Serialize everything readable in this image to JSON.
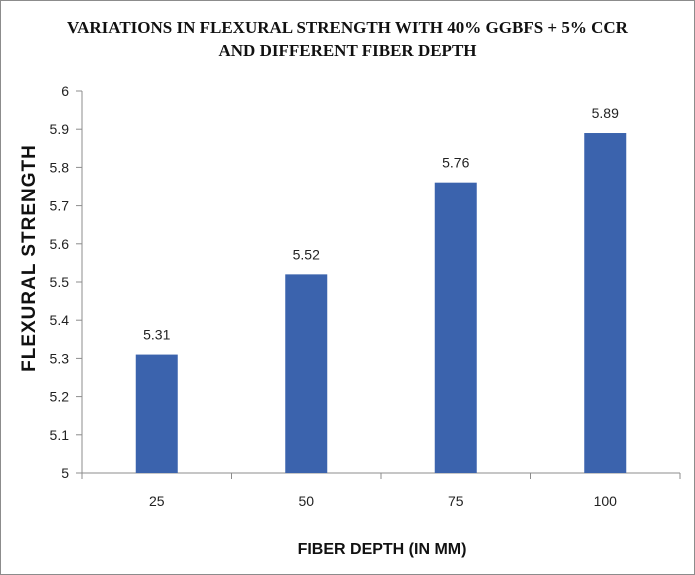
{
  "chart_data": {
    "type": "bar",
    "title_lines": [
      "VARIATIONS  IN  FLEXURAL STRENGTH WITH 40% GGBFS + 5% CCR",
      "AND DIFFERENT FIBER DEPTH"
    ],
    "xlabel": "FIBER DEPTH (IN MM)",
    "ylabel": "FLEXURAL STRENGTH",
    "categories": [
      "25",
      "50",
      "75",
      "100"
    ],
    "values": [
      5.31,
      5.52,
      5.76,
      5.89
    ],
    "data_labels": [
      "5.31",
      "5.52",
      "5.76",
      "5.89"
    ],
    "ylim": [
      5,
      6
    ],
    "yticks": [
      "5",
      "5.1",
      "5.2",
      "5.3",
      "5.4",
      "5.5",
      "5.6",
      "5.7",
      "5.8",
      "5.9",
      "6"
    ],
    "grid": false,
    "legend": "none",
    "bar_color": "#3b63ad"
  }
}
